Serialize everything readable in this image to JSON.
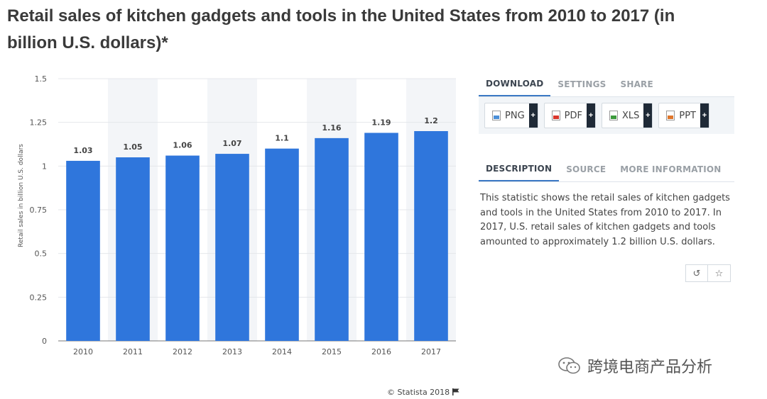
{
  "page": {
    "title": "Retail sales of kitchen gadgets and tools in the United States from 2010 to 2017 (in billion U.S. dollars)*"
  },
  "chart_data": {
    "type": "bar",
    "title": "Retail sales of kitchen gadgets and tools in the United States from 2010 to 2017 (in billion U.S. dollars)*",
    "xlabel": "",
    "ylabel": "Retail sales in billion U.S. dollars",
    "categories": [
      "2010",
      "2011",
      "2012",
      "2013",
      "2014",
      "2015",
      "2016",
      "2017"
    ],
    "values": [
      1.03,
      1.05,
      1.06,
      1.07,
      1.1,
      1.16,
      1.19,
      1.2
    ],
    "value_labels": [
      "1.03",
      "1.05",
      "1.06",
      "1.07",
      "1.1",
      "1.16",
      "1.19",
      "1.2"
    ],
    "ylim": [
      0,
      1.5
    ],
    "yticks": [
      0,
      0.25,
      0.5,
      0.75,
      1,
      1.25,
      1.5
    ],
    "ytick_labels": [
      "0",
      "0.25",
      "0.5",
      "0.75",
      "1",
      "1.25",
      "1.5"
    ],
    "bar_color": "#2f76dc",
    "grid": true,
    "legend": "none"
  },
  "download_tabs": [
    {
      "label": "DOWNLOAD",
      "active": true
    },
    {
      "label": "SETTINGS",
      "active": false
    },
    {
      "label": "SHARE",
      "active": false
    }
  ],
  "downloads": [
    {
      "label": "PNG",
      "icon": "png-file-icon",
      "color": "#4a8fd8"
    },
    {
      "label": "PDF",
      "icon": "pdf-file-icon",
      "color": "#d9362b"
    },
    {
      "label": "XLS",
      "icon": "xls-file-icon",
      "color": "#3c9a3c"
    },
    {
      "label": "PPT",
      "icon": "ppt-file-icon",
      "color": "#e0762a"
    }
  ],
  "info_tabs": [
    {
      "label": "DESCRIPTION",
      "active": true
    },
    {
      "label": "SOURCE",
      "active": false
    },
    {
      "label": "MORE INFORMATION",
      "active": false
    }
  ],
  "description": "This statistic shows the retail sales of kitchen gadgets and tools in the United States from 2010 to 2017. In 2017, U.S. retail sales of kitchen gadgets and tools amounted to approximately 1.2 billion U.S. dollars.",
  "actions": {
    "reset_icon": "↺",
    "favorite_icon": "☆"
  },
  "watermark": "跨境电商产品分析",
  "credit": "© Statista 2018"
}
